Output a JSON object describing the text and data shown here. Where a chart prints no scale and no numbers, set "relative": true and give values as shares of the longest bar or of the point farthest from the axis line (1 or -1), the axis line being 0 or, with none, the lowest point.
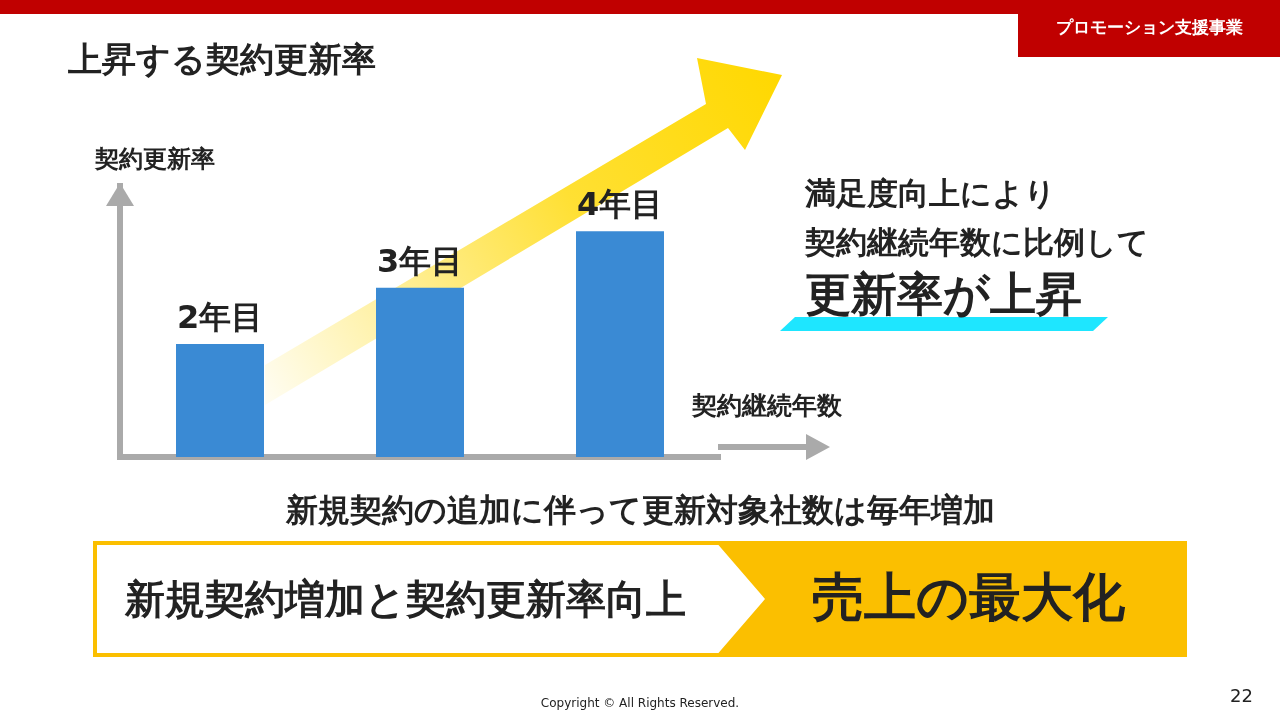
{
  "chart_data": {
    "type": "bar",
    "title": "上昇する契約更新率",
    "ylabel": "契約更新率",
    "xlabel": "契約継続年数",
    "categories": [
      "2年目",
      "3年目",
      "4年目"
    ],
    "values": [
      0.5,
      0.75,
      1.0
    ],
    "color": "#3a8ad4",
    "relative": true,
    "tick_labels": false,
    "grid": false,
    "legend": false,
    "annotations": [
      "プロモーション支援事業",
      "満足度向上により",
      "契約継続年数に比例して",
      "更新率が上昇",
      "新規契約の追加に伴って更新対象社数は毎年増加",
      "新規契約増加と契約更新率向上",
      "売上の最大化",
      "Copyright © All Rights Reserved.",
      "22"
    ]
  }
}
